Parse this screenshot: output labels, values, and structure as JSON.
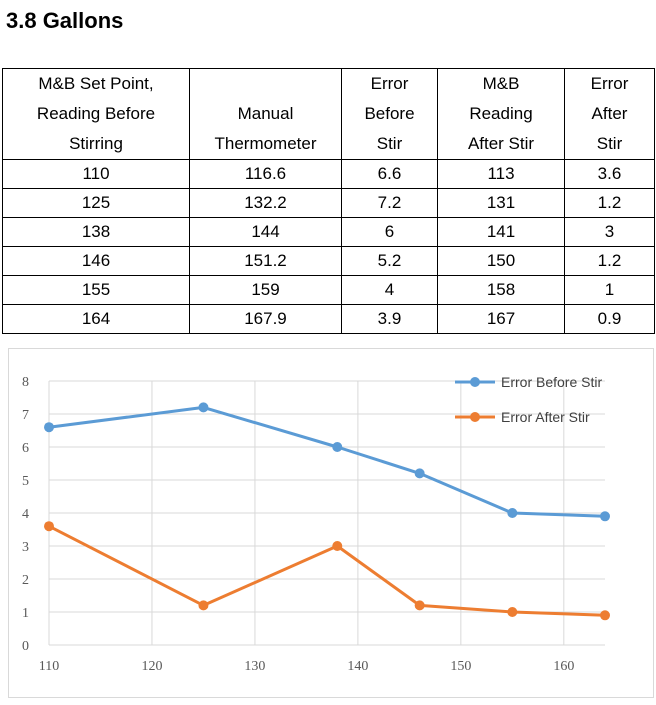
{
  "page": {
    "title": "3.8 Gallons"
  },
  "table": {
    "headers": [
      "M&B Set Point,\nReading Before\nStirring",
      "Manual\nThermometer",
      "Error\nBefore\nStir",
      "M&B\nReading\nAfter Stir",
      "Error\nAfter\nStir"
    ],
    "rows": [
      [
        "110",
        "116.6",
        "6.6",
        "113",
        "3.6"
      ],
      [
        "125",
        "132.2",
        "7.2",
        "131",
        "1.2"
      ],
      [
        "138",
        "144",
        "6",
        "141",
        "3"
      ],
      [
        "146",
        "151.2",
        "5.2",
        "150",
        "1.2"
      ],
      [
        "155",
        "159",
        "4",
        "158",
        "1"
      ],
      [
        "164",
        "167.9",
        "3.9",
        "167",
        "0.9"
      ]
    ]
  },
  "chart_data": {
    "type": "line",
    "x": [
      110,
      125,
      138,
      146,
      155,
      164
    ],
    "series": [
      {
        "name": "Error Before Stir",
        "color": "#5b9bd5",
        "values": [
          6.6,
          7.2,
          6,
          5.2,
          4,
          3.9
        ]
      },
      {
        "name": "Error After Stir",
        "color": "#ed7d31",
        "values": [
          3.6,
          1.2,
          3,
          1.2,
          1,
          0.9
        ]
      }
    ],
    "xlim": [
      110,
      164
    ],
    "xticks": [
      110,
      120,
      130,
      140,
      150,
      160
    ],
    "ylim": [
      0,
      8
    ],
    "yticks": [
      0,
      1,
      2,
      3,
      4,
      5,
      6,
      7,
      8
    ],
    "grid": true,
    "gridline_color": "#d9d9d9",
    "legend_position": "top-right",
    "title": "",
    "xlabel": "",
    "ylabel": ""
  }
}
